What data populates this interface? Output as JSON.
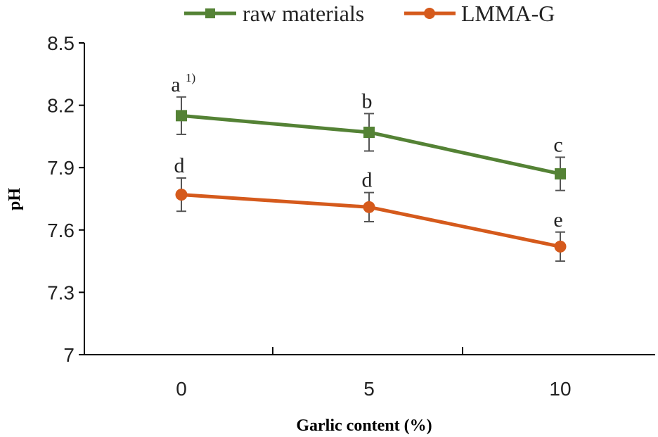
{
  "chart_data": {
    "type": "line",
    "xlabel": "Garlic content (%)",
    "ylabel": "pH",
    "x": [
      0,
      5,
      10
    ],
    "x_tick_labels": [
      "0",
      "5",
      "10"
    ],
    "ylim": [
      7,
      8.5
    ],
    "y_ticks": [
      7,
      7.3,
      7.6,
      7.9,
      8.2,
      8.5
    ],
    "y_tick_labels": [
      "7",
      "7.3",
      "7.6",
      "7.9",
      "8.2",
      "8.5"
    ],
    "grid": false,
    "legend_position": "top",
    "series": [
      {
        "name": "raw materials",
        "color": "#548235",
        "marker": "square",
        "values": [
          8.15,
          8.07,
          7.87
        ],
        "errors": [
          0.09,
          0.09,
          0.08
        ],
        "annotations": [
          "a",
          "b",
          "c"
        ]
      },
      {
        "name": "LMMA-G",
        "color": "#D55A1C",
        "marker": "circle",
        "values": [
          7.77,
          7.71,
          7.52
        ],
        "errors": [
          0.08,
          0.07,
          0.07
        ],
        "annotations": [
          "d",
          "d",
          "e"
        ]
      }
    ],
    "footnote_marker": "1)"
  }
}
